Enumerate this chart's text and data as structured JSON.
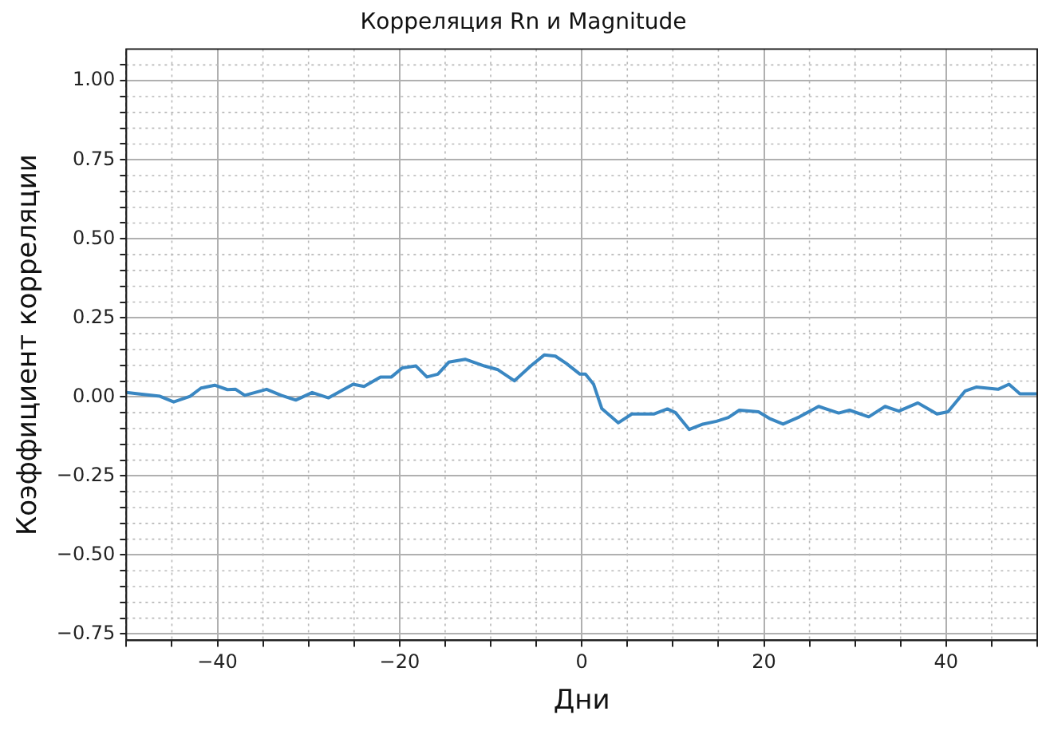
{
  "chart_data": {
    "type": "line",
    "title": "Корреляция Rn и Magnitude",
    "xlabel": "Дни",
    "ylabel": "Коэффициент корреляции",
    "x": [
      -50,
      -48.7,
      -46.3,
      -44.8,
      -43,
      -41.8,
      -40.3,
      -38.9,
      -38,
      -37,
      -34.6,
      -33,
      -31.4,
      -29.6,
      -27.8,
      -25.1,
      -23.9,
      -22.1,
      -20.9,
      -19.7,
      -18.2,
      -17,
      -15.8,
      -14.6,
      -12.8,
      -10.7,
      -9.2,
      -7.4,
      -5.6,
      -4.1,
      -2.9,
      -1.7,
      -0.2,
      0.4,
      1.3,
      2.2,
      4,
      5.5,
      7.9,
      9.4,
      10.3,
      11.8,
      13.3,
      14.8,
      16.1,
      17.3,
      19.4,
      20.6,
      22.1,
      23.9,
      26,
      28.2,
      29.4,
      31.5,
      33.3,
      34.8,
      36.9,
      39,
      40.2,
      42.1,
      43.3,
      45.7,
      46.9,
      48.1,
      50
    ],
    "series": [
      {
        "color": "#3a87c2",
        "values": [
          0.014,
          0.01,
          0.002,
          -0.016,
          0.002,
          0.028,
          0.037,
          0.023,
          0.024,
          0.005,
          0.024,
          0.005,
          -0.01,
          0.014,
          -0.003,
          0.04,
          0.033,
          0.063,
          0.063,
          0.092,
          0.098,
          0.063,
          0.072,
          0.11,
          0.119,
          0.098,
          0.086,
          0.051,
          0.098,
          0.133,
          0.129,
          0.106,
          0.072,
          0.072,
          0.04,
          -0.037,
          -0.082,
          -0.054,
          -0.054,
          -0.038,
          -0.05,
          -0.103,
          -0.086,
          -0.077,
          -0.065,
          -0.042,
          -0.047,
          -0.068,
          -0.086,
          -0.063,
          -0.03,
          -0.051,
          -0.042,
          -0.063,
          -0.03,
          -0.045,
          -0.019,
          -0.054,
          -0.047,
          0.019,
          0.031,
          0.024,
          0.04,
          0.01,
          0.01
        ]
      }
    ],
    "xlim": [
      -50,
      50
    ],
    "ylim": [
      -0.77,
      1.1
    ],
    "xticks": [
      {
        "value": -50,
        "label": null
      },
      {
        "value": -45,
        "label": null
      },
      {
        "value": -40,
        "label": "−40"
      },
      {
        "value": -35,
        "label": null
      },
      {
        "value": -30,
        "label": null
      },
      {
        "value": -25,
        "label": null
      },
      {
        "value": -20,
        "label": "−20"
      },
      {
        "value": -15,
        "label": null
      },
      {
        "value": -10,
        "label": null
      },
      {
        "value": -5,
        "label": null
      },
      {
        "value": 0,
        "label": "0"
      },
      {
        "value": 5,
        "label": null
      },
      {
        "value": 10,
        "label": null
      },
      {
        "value": 15,
        "label": null
      },
      {
        "value": 20,
        "label": "20"
      },
      {
        "value": 25,
        "label": null
      },
      {
        "value": 30,
        "label": null
      },
      {
        "value": 35,
        "label": null
      },
      {
        "value": 40,
        "label": "40"
      },
      {
        "value": 45,
        "label": null
      },
      {
        "value": 50,
        "label": null
      }
    ],
    "yticks": [
      {
        "value": -0.75,
        "label": "−0.75"
      },
      {
        "value": -0.7,
        "label": null
      },
      {
        "value": -0.65,
        "label": null
      },
      {
        "value": -0.6,
        "label": null
      },
      {
        "value": -0.55,
        "label": null
      },
      {
        "value": -0.5,
        "label": "−0.50"
      },
      {
        "value": -0.45,
        "label": null
      },
      {
        "value": -0.4,
        "label": null
      },
      {
        "value": -0.35,
        "label": null
      },
      {
        "value": -0.3,
        "label": null
      },
      {
        "value": -0.25,
        "label": "−0.25"
      },
      {
        "value": -0.2,
        "label": null
      },
      {
        "value": -0.15,
        "label": null
      },
      {
        "value": -0.1,
        "label": null
      },
      {
        "value": -0.05,
        "label": null
      },
      {
        "value": 0,
        "label": "0.00"
      },
      {
        "value": 0.05,
        "label": null
      },
      {
        "value": 0.1,
        "label": null
      },
      {
        "value": 0.15,
        "label": null
      },
      {
        "value": 0.2,
        "label": null
      },
      {
        "value": 0.25,
        "label": "0.25"
      },
      {
        "value": 0.3,
        "label": null
      },
      {
        "value": 0.35,
        "label": null
      },
      {
        "value": 0.4,
        "label": null
      },
      {
        "value": 0.45,
        "label": null
      },
      {
        "value": 0.5,
        "label": "0.50"
      },
      {
        "value": 0.55,
        "label": null
      },
      {
        "value": 0.6,
        "label": null
      },
      {
        "value": 0.65,
        "label": null
      },
      {
        "value": 0.7,
        "label": null
      },
      {
        "value": 0.75,
        "label": "0.75"
      },
      {
        "value": 0.8,
        "label": null
      },
      {
        "value": 0.85,
        "label": null
      },
      {
        "value": 0.9,
        "label": null
      },
      {
        "value": 0.95,
        "label": null
      },
      {
        "value": 1,
        "label": "1.00"
      },
      {
        "value": 1.05,
        "label": null
      }
    ],
    "grid": true,
    "legend": false,
    "marker": "none",
    "line_style": "solid"
  }
}
